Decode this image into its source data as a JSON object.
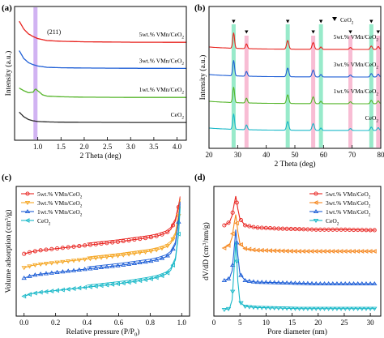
{
  "figure": {
    "panels": [
      "(a)",
      "(b)",
      "(c)",
      "(d)"
    ]
  },
  "colors": {
    "vmn5": "#e8231f",
    "vmn3": "#f5871f",
    "vmn1": "#1f5fd6",
    "ceo2_a": "#2c2c2c",
    "ceo2": "#19b8c8",
    "green_1wt": "#55b52a",
    "band_pink": "#f7b6cf",
    "band_green": "#8de8c4",
    "band_purple": "#c9a6f0"
  },
  "chart_data": [
    {
      "panel": "(a)",
      "type": "line",
      "xlabel": "2 Theta (deg)",
      "ylabel": "Intensity (a.u.)",
      "xlim": [
        0.5,
        4.2
      ],
      "xticks": [
        "1.0",
        "1.5",
        "2.0",
        "2.5",
        "3.0",
        "3.5",
        "4.0"
      ],
      "annotation": "(211)",
      "band_x": 0.95,
      "series": [
        {
          "name": "5wt.% VMn/CeO2",
          "label_main": "5wt.% VMn/CeO",
          "sub": "2",
          "color": "#e8231f",
          "x": [
            0.6,
            0.7,
            0.8,
            0.9,
            1.0,
            1.2,
            1.5,
            2.0,
            3.0,
            4.2
          ],
          "y": [
            8.9,
            8.3,
            7.95,
            7.75,
            7.6,
            7.45,
            7.4,
            7.36,
            7.33,
            7.32
          ]
        },
        {
          "name": "3wt.% VMn/CeO2",
          "label_main": "3wt.% VMn/CeO",
          "sub": "2",
          "color": "#1f5fd6",
          "x": [
            0.6,
            0.7,
            0.8,
            0.9,
            1.0,
            1.2,
            1.5,
            2.0,
            3.0,
            4.2
          ],
          "y": [
            6.7,
            6.1,
            5.8,
            5.65,
            5.55,
            5.45,
            5.42,
            5.4,
            5.38,
            5.37
          ]
        },
        {
          "name": "1wt.% VMn/CeO2",
          "label_main": "1wt.% VMn/CeO",
          "sub": "2",
          "color": "#55b52a",
          "x": [
            0.6,
            0.7,
            0.8,
            0.9,
            0.95,
            1.0,
            1.1,
            1.2,
            1.5,
            2.0,
            3.0,
            4.2
          ],
          "y": [
            3.9,
            3.7,
            3.55,
            3.6,
            3.85,
            3.7,
            3.4,
            3.3,
            3.25,
            3.22,
            3.2,
            3.2
          ]
        },
        {
          "name": "CeO2",
          "label_main": "CeO",
          "sub": "2",
          "color": "#2c2c2c",
          "x": [
            0.6,
            0.7,
            0.8,
            0.9,
            1.0,
            1.2,
            1.5,
            2.0,
            3.0,
            4.2
          ],
          "y": [
            2.1,
            1.75,
            1.55,
            1.45,
            1.4,
            1.37,
            1.35,
            1.34,
            1.33,
            1.33
          ]
        }
      ]
    },
    {
      "panel": "(b)",
      "type": "line",
      "xlabel": "2 Theta (deg)",
      "ylabel": "Intensity (a.u.)",
      "xlim": [
        20,
        80
      ],
      "xticks": [
        "20",
        "30",
        "40",
        "50",
        "60",
        "70",
        "80"
      ],
      "legend": "▼ CeO2",
      "legend_main": "CeO",
      "legend_sub": "2",
      "peaks_ceo2": [
        28.6,
        33.1,
        47.5,
        56.4,
        59.1,
        69.4,
        76.7,
        79.1
      ],
      "bands_green": [
        28.6,
        47.5,
        59.1,
        76.7
      ],
      "bands_pink": [
        33.1,
        56.4,
        69.4,
        79.1
      ],
      "series": [
        {
          "name": "5wt.% VMn/CeO2",
          "label_main": "5wt.% VMn/CeO",
          "sub": "2",
          "color": "#e8231f",
          "offset": 3.0
        },
        {
          "name": "3wt.% VMn/CeO2",
          "label_main": "3wt.% VMn/CeO",
          "sub": "2",
          "color": "#1f5fd6",
          "offset": 2.0
        },
        {
          "name": "1wt.% VMn/CeO2",
          "label_main": "1wt.% VMn/CeO",
          "sub": "2",
          "color": "#55b52a",
          "offset": 1.0
        },
        {
          "name": "CeO2",
          "label_main": "CeO",
          "sub": "2",
          "color": "#19b8c8",
          "offset": 0.0
        }
      ]
    },
    {
      "panel": "(c)",
      "type": "line",
      "xlabel": "Relative pressure (P/P0)",
      "xlabel_main": "Relative pressure (P/P",
      "xlabel_sub": "0",
      "xlabel_end": ")",
      "ylabel": "Volume adsorption (cm3/g)",
      "ylabel_main": "Volume adsorption (cm",
      "ylabel_sup": "3",
      "ylabel_end": "/g)",
      "xlim": [
        -0.05,
        1.05
      ],
      "xticks": [
        "0.0",
        "0.2",
        "0.4",
        "0.6",
        "0.8",
        "1.0"
      ],
      "series": [
        {
          "name": "5wt.% VMn/CeO2",
          "label_main": "5wt.% VMn/CeO",
          "sub": "2",
          "color": "#e8231f",
          "x": [
            0.0,
            0.05,
            0.1,
            0.2,
            0.3,
            0.4,
            0.5,
            0.6,
            0.7,
            0.8,
            0.85,
            0.9,
            0.93,
            0.96,
            0.98,
            0.99
          ],
          "y": [
            7.2,
            7.45,
            7.6,
            7.8,
            8.0,
            8.2,
            8.4,
            8.6,
            8.85,
            9.1,
            9.3,
            9.6,
            10.0,
            11.0,
            12.6,
            13.6
          ]
        },
        {
          "name": "3wt.% VMn/CeO2",
          "label_main": "3wt.% VMn/CeO",
          "sub": "2",
          "color": "#f5a623",
          "x": [
            0.0,
            0.05,
            0.1,
            0.2,
            0.3,
            0.4,
            0.5,
            0.6,
            0.7,
            0.8,
            0.85,
            0.9,
            0.93,
            0.96,
            0.98,
            0.99
          ],
          "y": [
            5.6,
            5.85,
            6.0,
            6.2,
            6.4,
            6.6,
            6.8,
            7.0,
            7.25,
            7.5,
            7.7,
            8.0,
            8.4,
            9.4,
            11.6,
            13.3
          ]
        },
        {
          "name": "1wt.% VMn/CeO2",
          "label_main": "1wt.% VMn/CeO",
          "sub": "2",
          "color": "#1f5fd6",
          "x": [
            0.0,
            0.05,
            0.1,
            0.2,
            0.3,
            0.4,
            0.5,
            0.6,
            0.7,
            0.8,
            0.85,
            0.9,
            0.93,
            0.96,
            0.98,
            0.99
          ],
          "y": [
            4.4,
            4.7,
            4.85,
            5.05,
            5.25,
            5.45,
            5.65,
            5.85,
            6.1,
            6.35,
            6.55,
            6.85,
            7.25,
            8.3,
            10.9,
            13.0
          ]
        },
        {
          "name": "CeO2",
          "label_main": "CeO",
          "sub": "2",
          "color": "#19b8c8",
          "x": [
            0.0,
            0.05,
            0.1,
            0.2,
            0.3,
            0.4,
            0.5,
            0.6,
            0.7,
            0.8,
            0.85,
            0.9,
            0.93,
            0.96,
            0.98,
            0.99
          ],
          "y": [
            2.3,
            2.6,
            2.75,
            2.95,
            3.15,
            3.35,
            3.55,
            3.75,
            4.0,
            4.3,
            4.5,
            4.85,
            5.3,
            6.5,
            9.5,
            12.5
          ]
        }
      ]
    },
    {
      "panel": "(d)",
      "type": "line",
      "xlabel": "Pore diameter (nm)",
      "ylabel": "dV/dD (cm3/nm/g)",
      "ylabel_main": "dV/dD (cm",
      "ylabel_sup": "3",
      "ylabel_end": "/nm/g)",
      "xlim": [
        0,
        32
      ],
      "xticks": [
        "0",
        "5",
        "10",
        "15",
        "20",
        "25",
        "30"
      ],
      "series": [
        {
          "name": "5wt.% VMn/CeO2",
          "label_main": "5wt.% VMn/CeO",
          "sub": "2",
          "color": "#e8231f",
          "x": [
            2.0,
            3.0,
            3.5,
            3.9,
            4.2,
            4.6,
            5.0,
            6.0,
            8.0,
            12.0,
            16.0,
            20.0,
            25.0,
            31.0
          ],
          "y": [
            8.4,
            8.7,
            9.3,
            10.4,
            11.1,
            9.9,
            9.0,
            8.4,
            8.2,
            8.1,
            8.05,
            8.0,
            8.0,
            7.95
          ]
        },
        {
          "name": "3wt.% VMn/CeO2",
          "label_main": "3wt.% VMn/CeO",
          "sub": "2",
          "color": "#f5871f",
          "x": [
            2.0,
            3.0,
            3.5,
            3.9,
            4.2,
            4.6,
            5.0,
            6.0,
            8.0,
            12.0,
            16.0,
            20.0,
            25.0,
            31.0
          ],
          "y": [
            6.3,
            6.6,
            7.3,
            8.6,
            9.4,
            7.8,
            6.7,
            6.25,
            6.1,
            6.05,
            6.0,
            6.0,
            6.0,
            6.0
          ]
        },
        {
          "name": "1wt.% VMn/CeO2",
          "label_main": "1wt.% VMn/CeO",
          "sub": "2",
          "color": "#1f5fd6",
          "x": [
            2.0,
            3.0,
            3.5,
            3.9,
            4.2,
            4.6,
            5.0,
            6.0,
            8.0,
            12.0,
            16.0,
            20.0,
            25.0,
            31.0
          ],
          "y": [
            3.3,
            3.5,
            4.2,
            6.3,
            8.0,
            5.6,
            3.9,
            3.3,
            3.15,
            3.1,
            3.05,
            3.0,
            3.0,
            3.0
          ]
        },
        {
          "name": "CeO2",
          "label_main": "CeO",
          "sub": "2",
          "color": "#19b8c8",
          "x": [
            2.0,
            3.0,
            3.5,
            3.9,
            4.2,
            4.6,
            5.0,
            6.0,
            8.0,
            12.0,
            16.0,
            20.0,
            25.0,
            31.0
          ],
          "y": [
            0.6,
            0.7,
            1.5,
            4.6,
            6.9,
            3.2,
            1.3,
            0.9,
            0.8,
            0.75,
            0.7,
            0.7,
            0.7,
            0.7
          ]
        }
      ]
    }
  ]
}
